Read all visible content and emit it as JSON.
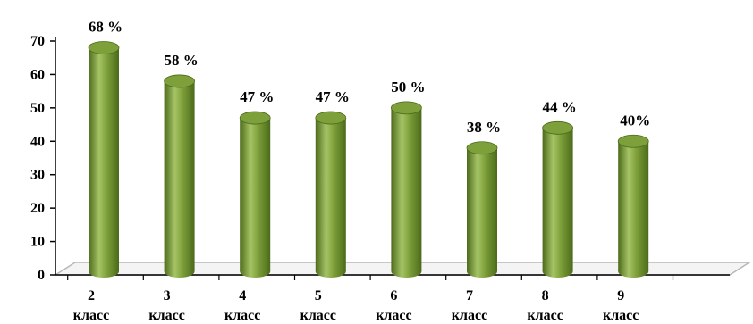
{
  "chart_data": {
    "type": "bar",
    "categories": [
      [
        "2",
        "класс"
      ],
      [
        "3",
        "класс"
      ],
      [
        "4",
        "класс"
      ],
      [
        "5",
        "класс"
      ],
      [
        "6",
        "класс"
      ],
      [
        "7",
        "класс"
      ],
      [
        "8",
        "класс"
      ],
      [
        "9",
        "класс"
      ]
    ],
    "values": [
      68,
      58,
      47,
      47,
      50,
      38,
      44,
      40
    ],
    "data_labels": [
      "68 %",
      "58 %",
      "47 %",
      "47 %",
      "50 %",
      "38 %",
      "44 %",
      "40%"
    ],
    "y_ticks": [
      "0",
      "10",
      "20",
      "30",
      "40",
      "50",
      "60",
      "70"
    ],
    "ylim": [
      0,
      70
    ],
    "grid": false,
    "legend": false,
    "colors": {
      "bar_dark": "#4c6a1a",
      "bar_mid": "#7ea03a",
      "bar_light": "#a6c466",
      "axis": "#000000",
      "floor": "#b8b8b8"
    }
  }
}
